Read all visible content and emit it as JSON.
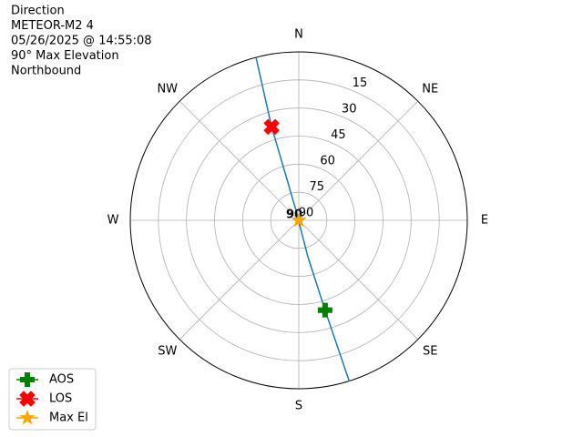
{
  "chart_data": {
    "type": "polar",
    "title_lines": [
      "Direction",
      "METEOR-M2 4",
      "05/26/2025 @ 14:55:08",
      "90° Max Elevation",
      "Northbound"
    ],
    "theta_zero": "N",
    "theta_direction": "clockwise",
    "rlim": [
      90,
      0
    ],
    "rticks": [
      15,
      30,
      45,
      60,
      75,
      90
    ],
    "thetaticks": [
      {
        "value": 0,
        "label": "N"
      },
      {
        "value": 45,
        "label": "NE"
      },
      {
        "value": 90,
        "label": "E"
      },
      {
        "value": 135,
        "label": "SE"
      },
      {
        "value": 180,
        "label": "S"
      },
      {
        "value": 225,
        "label": "SW"
      },
      {
        "value": 270,
        "label": "W"
      },
      {
        "value": 315,
        "label": "NW"
      }
    ],
    "grid": true,
    "track": {
      "color": "#1f77b4",
      "azimuth": [
        162.6,
        163.7,
        166,
        170,
        345,
        344,
        343.8,
        345.3
      ],
      "elevation": [
        0,
        40,
        70,
        88,
        88,
        70,
        38,
        0
      ]
    },
    "markers": [
      {
        "name": "AOS",
        "color": "green",
        "marker": "plus",
        "azimuth": 163.7,
        "elevation": 40
      },
      {
        "name": "LOS",
        "color": "red",
        "marker": "x",
        "azimuth": 343.8,
        "elevation": 38
      },
      {
        "name": "Max El",
        "color": "orange",
        "marker": "star",
        "azimuth": 0,
        "elevation": 90
      }
    ],
    "annotation": {
      "text": "90",
      "azimuth": 0,
      "elevation": 90
    },
    "legend": "lower left"
  }
}
